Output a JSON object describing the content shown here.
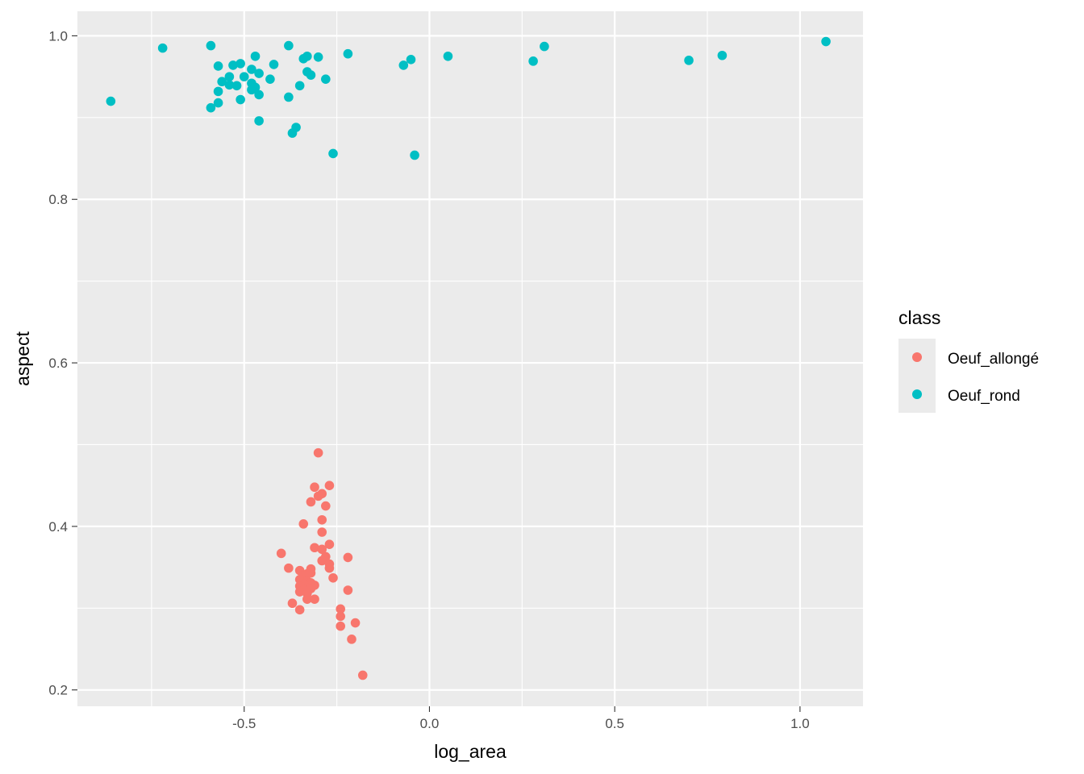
{
  "chart_data": {
    "type": "scatter",
    "xlabel": "log_area",
    "ylabel": "aspect",
    "xlim": [
      -0.95,
      1.17
    ],
    "ylim": [
      0.18,
      1.03
    ],
    "x_ticks": [
      -0.5,
      0.0,
      0.5,
      1.0
    ],
    "x_tick_labels": [
      "-0.5",
      "0.0",
      "0.5",
      "1.0"
    ],
    "y_ticks": [
      0.2,
      0.4,
      0.6,
      0.8,
      1.0
    ],
    "y_tick_labels": [
      "0.2",
      "0.4",
      "0.6",
      "0.8",
      "1.0"
    ],
    "grid": true,
    "legend": {
      "title": "class",
      "placement": "right"
    },
    "series": [
      {
        "name": "Oeuf_allongé",
        "color": "#F8766D",
        "points": [
          [
            -0.3,
            0.49
          ],
          [
            -0.27,
            0.45
          ],
          [
            -0.31,
            0.448
          ],
          [
            -0.29,
            0.44
          ],
          [
            -0.3,
            0.437
          ],
          [
            -0.32,
            0.43
          ],
          [
            -0.28,
            0.425
          ],
          [
            -0.29,
            0.408
          ],
          [
            -0.34,
            0.403
          ],
          [
            -0.29,
            0.393
          ],
          [
            -0.27,
            0.378
          ],
          [
            -0.31,
            0.374
          ],
          [
            -0.29,
            0.372
          ],
          [
            -0.4,
            0.367
          ],
          [
            -0.28,
            0.363
          ],
          [
            -0.22,
            0.362
          ],
          [
            -0.29,
            0.358
          ],
          [
            -0.27,
            0.354
          ],
          [
            -0.27,
            0.349
          ],
          [
            -0.38,
            0.349
          ],
          [
            -0.32,
            0.348
          ],
          [
            -0.35,
            0.346
          ],
          [
            -0.32,
            0.343
          ],
          [
            -0.33,
            0.342
          ],
          [
            -0.34,
            0.34
          ],
          [
            -0.26,
            0.337
          ],
          [
            -0.35,
            0.335
          ],
          [
            -0.33,
            0.333
          ],
          [
            -0.32,
            0.331
          ],
          [
            -0.34,
            0.33
          ],
          [
            -0.31,
            0.328
          ],
          [
            -0.35,
            0.327
          ],
          [
            -0.33,
            0.325
          ],
          [
            -0.32,
            0.324
          ],
          [
            -0.34,
            0.322
          ],
          [
            -0.22,
            0.322
          ],
          [
            -0.35,
            0.32
          ],
          [
            -0.33,
            0.318
          ],
          [
            -0.33,
            0.311
          ],
          [
            -0.31,
            0.311
          ],
          [
            -0.37,
            0.306
          ],
          [
            -0.24,
            0.299
          ],
          [
            -0.35,
            0.298
          ],
          [
            -0.24,
            0.29
          ],
          [
            -0.2,
            0.282
          ],
          [
            -0.24,
            0.278
          ],
          [
            -0.21,
            0.262
          ],
          [
            -0.18,
            0.218
          ]
        ]
      },
      {
        "name": "Oeuf_rond",
        "color": "#00BFC4",
        "points": [
          [
            1.07,
            0.993
          ],
          [
            -0.59,
            0.988
          ],
          [
            -0.38,
            0.988
          ],
          [
            0.31,
            0.987
          ],
          [
            -0.72,
            0.985
          ],
          [
            -0.22,
            0.978
          ],
          [
            -0.47,
            0.975
          ],
          [
            0.79,
            0.976
          ],
          [
            0.05,
            0.975
          ],
          [
            -0.33,
            0.975
          ],
          [
            -0.3,
            0.974
          ],
          [
            -0.34,
            0.972
          ],
          [
            -0.05,
            0.971
          ],
          [
            0.7,
            0.97
          ],
          [
            0.28,
            0.969
          ],
          [
            -0.51,
            0.966
          ],
          [
            -0.42,
            0.965
          ],
          [
            -0.53,
            0.964
          ],
          [
            -0.57,
            0.963
          ],
          [
            -0.07,
            0.964
          ],
          [
            -0.48,
            0.959
          ],
          [
            -0.33,
            0.956
          ],
          [
            -0.46,
            0.954
          ],
          [
            -0.32,
            0.952
          ],
          [
            -0.5,
            0.95
          ],
          [
            -0.54,
            0.95
          ],
          [
            -0.28,
            0.947
          ],
          [
            -0.43,
            0.947
          ],
          [
            -0.56,
            0.944
          ],
          [
            -0.48,
            0.942
          ],
          [
            -0.54,
            0.94
          ],
          [
            -0.52,
            0.939
          ],
          [
            -0.35,
            0.939
          ],
          [
            -0.47,
            0.937
          ],
          [
            -0.48,
            0.934
          ],
          [
            -0.57,
            0.932
          ],
          [
            -0.46,
            0.928
          ],
          [
            -0.38,
            0.925
          ],
          [
            -0.51,
            0.922
          ],
          [
            -0.86,
            0.92
          ],
          [
            -0.57,
            0.918
          ],
          [
            -0.59,
            0.912
          ],
          [
            -0.46,
            0.896
          ],
          [
            -0.36,
            0.888
          ],
          [
            -0.37,
            0.881
          ],
          [
            -0.26,
            0.856
          ],
          [
            -0.04,
            0.854
          ]
        ]
      }
    ]
  }
}
